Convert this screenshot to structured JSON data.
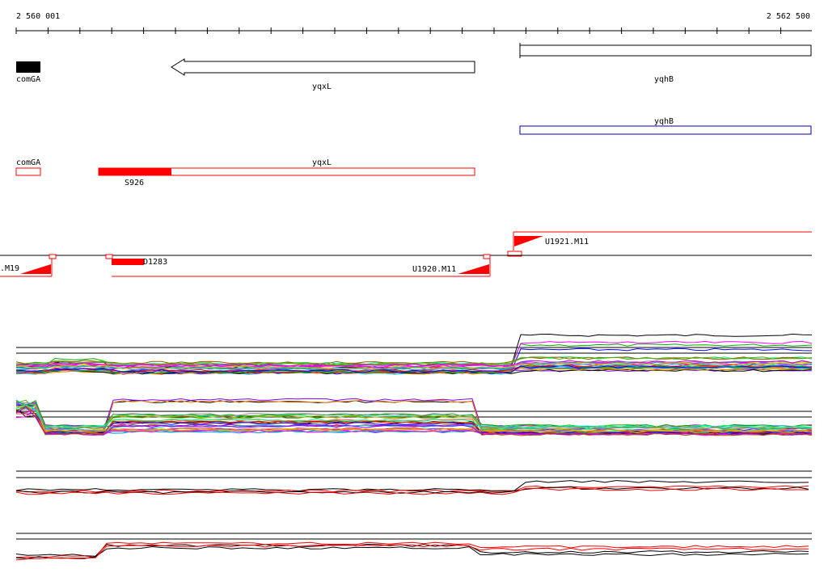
{
  "ruler": {
    "start_label": "2 560 001",
    "end_label": "2 562 500"
  },
  "tracks": {
    "genes": {
      "items": [
        {
          "label": "comGA",
          "strand": "+",
          "style": "filled"
        },
        {
          "label": "yqxL",
          "strand": "-",
          "style": "arrow"
        },
        {
          "label": "yqhB",
          "strand": "+",
          "style": "open"
        }
      ]
    },
    "annotation_blue": {
      "items": [
        {
          "label": "yqhB"
        }
      ]
    },
    "annotation_red": {
      "items": [
        {
          "label": "comGA"
        },
        {
          "label": "yqxL"
        },
        {
          "label": "S926"
        }
      ]
    },
    "transcripts": {
      "items": [
        {
          "label": "U1921.M11",
          "strand": "+"
        },
        {
          "label": ".M19",
          "strand": "-"
        },
        {
          "label": "D1283",
          "strand": "-"
        },
        {
          "label": "U1920.M11",
          "strand": "-"
        }
      ]
    },
    "expression": {
      "panels": [
        {
          "name": "forward-strand-profiles",
          "palette": "multicolor"
        },
        {
          "name": "reverse-strand-profiles",
          "palette": "multicolor"
        },
        {
          "name": "forward-summary",
          "palette": "black-red"
        },
        {
          "name": "reverse-summary",
          "palette": "black-red"
        }
      ]
    }
  },
  "colors": {
    "feature_red": "#ff0000",
    "annotation_blue": "#0000aa",
    "track_line": "#000000"
  }
}
